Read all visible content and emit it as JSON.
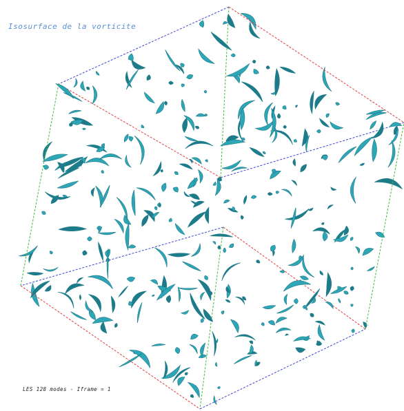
{
  "viewer": {
    "title": "Isosurface de la vorticite",
    "footer": "LES 128 modes - ",
    "footer_value": "Iframe = 1",
    "colors": {
      "background": "#ffffff",
      "surface": "#2ea6b6",
      "surface_dark": "#1e7c8a",
      "title_text": "#5a8fd6",
      "footer_text": "#222222",
      "edge_red": "#e23b3b",
      "edge_green": "#3bbf3b",
      "edge_blue": "#3b46d6"
    }
  }
}
